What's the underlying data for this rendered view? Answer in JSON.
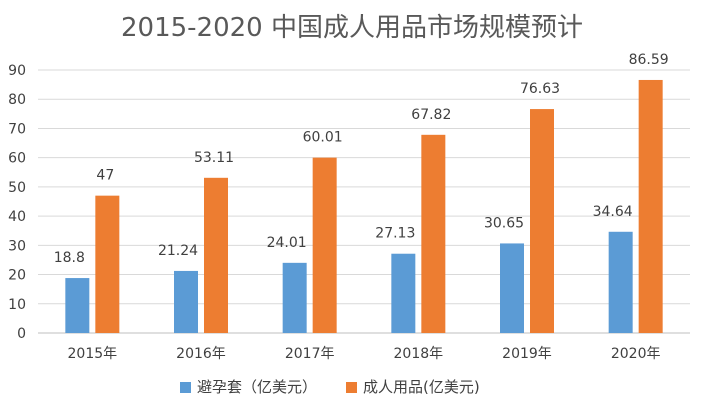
{
  "chart_data": {
    "type": "bar",
    "title": "2015-2020 中国成人用品市场规模预计",
    "categories": [
      "2015年",
      "2016年",
      "2017年",
      "2018年",
      "2019年",
      "2020年"
    ],
    "series": [
      {
        "name": "避孕套（亿美元）",
        "color": "#5b9bd5",
        "values": [
          18.8,
          21.24,
          24.01,
          27.13,
          30.65,
          34.64
        ],
        "labels": [
          "18.8",
          "21.24",
          "24.01",
          "27.13",
          "30.65",
          "34.64"
        ]
      },
      {
        "name": "成人用品(亿美元)",
        "color": "#ed7d31",
        "values": [
          47,
          53.11,
          60.01,
          67.82,
          76.63,
          86.59
        ],
        "labels": [
          "47",
          "53.11",
          "60.01",
          "67.82",
          "76.63",
          "86.59"
        ]
      }
    ],
    "yticks": [
      "0",
      "10",
      "20",
      "30",
      "40",
      "50",
      "60",
      "70",
      "80",
      "90"
    ],
    "ylim": [
      0,
      90
    ],
    "grid": true,
    "legend": "bottom"
  }
}
